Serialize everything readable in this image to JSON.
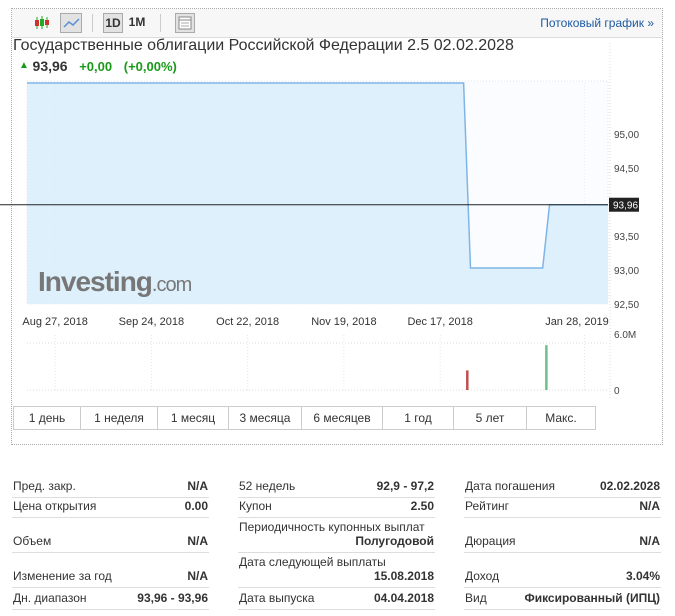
{
  "toolbar": {
    "candles_icon": "candlestick-icon",
    "line_icon": "line-chart-icon",
    "d1": "1D",
    "m1": "1M",
    "table_icon": "table-icon",
    "stream": "Потоковый график »"
  },
  "header": {
    "title": "Государственные облигации Российской Федерации 2.5 02.02.2028",
    "price": "93,96",
    "change": "+0,00",
    "change_pct": "(+0,00%)"
  },
  "logo": {
    "text": "Investing",
    "suffix": ".com"
  },
  "colors": {
    "up": "#1a9a1a",
    "link": "#1e5aa0",
    "fill": "#d7ecfb",
    "line": "#7fb5e6",
    "vol_down": "#c05050",
    "vol_up": "#6cc08a"
  },
  "ranges": [
    "1 день",
    "1 неделя",
    "1 месяц",
    "3 месяца",
    "6 месяцев",
    "1 год",
    "5 лет",
    "Макс."
  ],
  "chart_data": {
    "type": "area",
    "x_ticks": [
      "Aug 27, 2018",
      "Sep 24, 2018",
      "Oct 22, 2018",
      "Nov 19, 2018",
      "Dec 17, 2018",
      "Jan 28, 2019"
    ],
    "x_tick_dates": [
      "2018-08-27",
      "2018-09-24",
      "2018-10-22",
      "2018-11-19",
      "2018-12-17",
      "2019-01-28"
    ],
    "xlim": [
      "2018-08-13",
      "2019-01-29"
    ],
    "ylim": [
      92.5,
      95.75
    ],
    "y_ticks": [
      "95,00",
      "94,50",
      "93,50",
      "93,00",
      "92,50"
    ],
    "y_tick_values": [
      95,
      94.5,
      93.5,
      93,
      92.5
    ],
    "last_label": "93,96",
    "last_value": 93.96,
    "series": [
      {
        "points": [
          [
            "2018-08-13",
            95.75
          ],
          [
            "2018-12-18",
            95.75
          ],
          [
            "2018-12-20",
            93.03
          ],
          [
            "2019-01-10",
            93.03
          ],
          [
            "2019-01-12",
            93.96
          ],
          [
            "2019-01-29",
            93.96
          ]
        ]
      }
    ],
    "volume": {
      "y_ticks": [
        "6.0M",
        "0"
      ],
      "ylim": [
        0,
        6000000
      ],
      "bars": [
        {
          "date": "2018-12-19",
          "value": 2100000,
          "dir": "down"
        },
        {
          "date": "2019-01-11",
          "value": 4800000,
          "dir": "up"
        }
      ]
    }
  },
  "stats": {
    "col1": [
      {
        "k": "Пред. закр.",
        "v": "N/A"
      },
      {
        "k": "Цена открытия",
        "v": "0.00"
      },
      {
        "k": "Объем",
        "v": "N/A"
      },
      {
        "k": "Изменение за год",
        "v": "N/A"
      },
      {
        "k": "Дн. диапазон",
        "v": "93,96 - 93,96"
      }
    ],
    "col2": [
      {
        "k": "52 недель",
        "v": "92,9 - 97,2"
      },
      {
        "k": "Купон",
        "v": "2.50"
      },
      {
        "k": "Периодичность купонных выплат",
        "v": "Полугодовой"
      },
      {
        "k": "Дата следующей выплаты",
        "v": "15.08.2018"
      },
      {
        "k": "Дата выпуска",
        "v": "04.04.2018"
      }
    ],
    "col3": [
      {
        "k": "Дата погашения",
        "v": "02.02.2028"
      },
      {
        "k": "Рейтинг",
        "v": "N/A"
      },
      {
        "k": "Дюрация",
        "v": "N/A"
      },
      {
        "k": "Доход",
        "v": "3.04%"
      },
      {
        "k": "Вид",
        "v": "Фиксированный (ИПЦ)"
      }
    ]
  }
}
